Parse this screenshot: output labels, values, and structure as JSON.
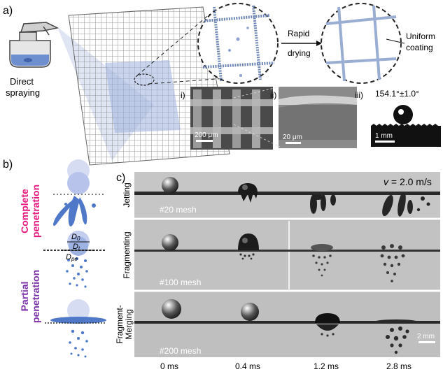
{
  "panel_a": {
    "label": "a)",
    "spray_caption_line1": "Direct",
    "spray_caption_line2": "spraying",
    "arrow_label_line1": "Rapid",
    "arrow_label_line2": "drying",
    "coating_label_line1": "Uniform",
    "coating_label_line2": "coating",
    "sem": [
      {
        "roman": "i)",
        "scale_bar": "200 μm"
      },
      {
        "roman": "ii)",
        "scale_bar": "20 μm"
      },
      {
        "roman": "iii)",
        "scale_bar": "1 mm"
      }
    ],
    "contact_angle": "154.1°±1.0°"
  },
  "panel_b": {
    "label": "b)",
    "complete_line1": "Complete",
    "complete_line2": "penetration",
    "partial_line1": "Partial",
    "partial_line2": "penetration",
    "d0": "D",
    "d0_sub": "0",
    "dt": "D",
    "dt_sub": "t",
    "dpe": "D",
    "dpe_sub": "pe",
    "colors": {
      "complete": "#e6197f",
      "partial": "#7b2fa8",
      "droplet": "#4f78c9",
      "droplet_light": "#c3cdee"
    }
  },
  "panel_c": {
    "label": "c)",
    "velocity_var": "v",
    "velocity_rest": " = 2.0 m/s",
    "rows": [
      {
        "regime": "Jetting",
        "mesh": "#20 mesh"
      },
      {
        "regime": "Fragmenting",
        "mesh": "#100 mesh"
      },
      {
        "regime_line1": "Fragment-",
        "regime_line2": "Merging",
        "mesh": "#200 mesh"
      }
    ],
    "times": [
      "0 ms",
      "0.4 ms",
      "1.2 ms",
      "2.8 ms"
    ],
    "scale_bar": "2 mm"
  }
}
